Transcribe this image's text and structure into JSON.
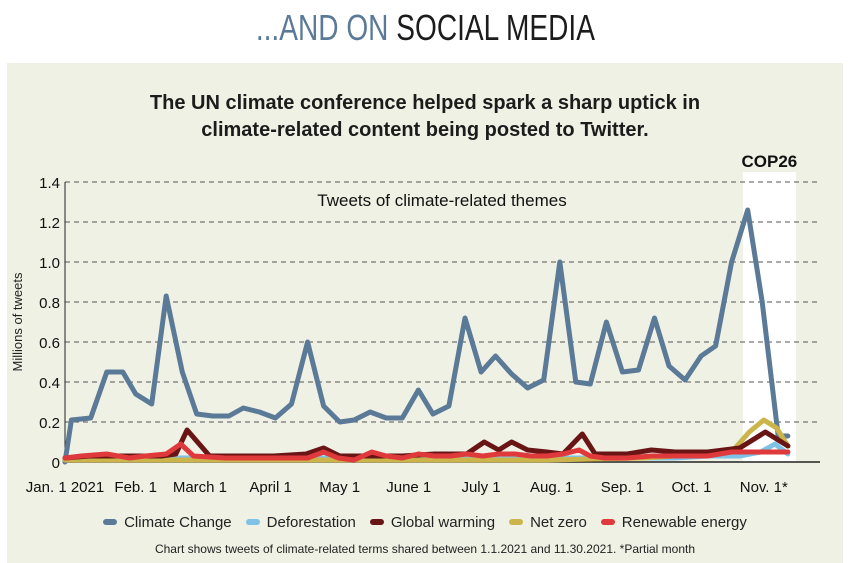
{
  "header": {
    "prefix": "...AND ON",
    "main": "SOCIAL MEDIA",
    "prefix_color": "#5b7a98"
  },
  "title": {
    "line1": "The UN climate conference helped spark a sharp uptick in",
    "line2": "climate-related content being posted to Twitter."
  },
  "footnote": "Chart shows tweets of climate-related terms shared between 1.1.2021 and 11.30.2021. *Partial month",
  "chart_data": {
    "type": "line",
    "subtitle": "Tweets of climate-related themes",
    "annotation": "COP26",
    "ylabel": "Millions of tweets",
    "ylim": [
      0,
      1.4
    ],
    "yticks": [
      "0",
      "0.2",
      "0.4",
      "0.6",
      "0.8",
      "1.0",
      "1.2",
      "1.4"
    ],
    "xlim": [
      0,
      47
    ],
    "xticks": [
      {
        "label": "Jan. 1 2021",
        "x": 0
      },
      {
        "label": "Feb. 1",
        "x": 4.4
      },
      {
        "label": "March 1",
        "x": 8.4
      },
      {
        "label": "April 1",
        "x": 12.8
      },
      {
        "label": "May 1",
        "x": 17.1
      },
      {
        "label": "June 1",
        "x": 21.4
      },
      {
        "label": "July 1",
        "x": 25.9
      },
      {
        "label": "Aug. 1",
        "x": 30.3
      },
      {
        "label": "Sep. 1",
        "x": 34.7
      },
      {
        "label": "Oct. 1",
        "x": 39.0
      },
      {
        "label": "Nov. 1*",
        "x": 43.5
      }
    ],
    "cop26_range": [
      42.2,
      45.5
    ],
    "series": [
      {
        "name": "Climate Change",
        "color": "#5b7a98",
        "x": [
          0,
          0.4,
          1.6,
          2.6,
          3.6,
          4.4,
          5.4,
          6.3,
          7.3,
          8.2,
          9.2,
          10.2,
          11.1,
          12.1,
          13.1,
          14.1,
          15.1,
          16.1,
          17.1,
          18.0,
          19.0,
          20.0,
          21.0,
          22.0,
          22.9,
          23.9,
          24.9,
          25.9,
          26.8,
          27.8,
          28.8,
          29.8,
          30.8,
          31.8,
          32.7,
          33.7,
          34.7,
          35.7,
          36.7,
          37.6,
          38.6,
          39.6,
          40.5,
          41.5,
          42.5,
          43.4,
          44.4,
          45.0
        ],
        "values": [
          0.0,
          0.21,
          0.22,
          0.45,
          0.45,
          0.34,
          0.29,
          0.83,
          0.45,
          0.24,
          0.23,
          0.23,
          0.27,
          0.25,
          0.22,
          0.29,
          0.6,
          0.28,
          0.2,
          0.21,
          0.25,
          0.22,
          0.22,
          0.36,
          0.24,
          0.28,
          0.72,
          0.45,
          0.53,
          0.44,
          0.37,
          0.41,
          1.0,
          0.4,
          0.39,
          0.7,
          0.45,
          0.46,
          0.72,
          0.48,
          0.41,
          0.53,
          0.58,
          1.0,
          1.26,
          0.8,
          0.13,
          0.13
        ]
      },
      {
        "name": "Deforestation",
        "color": "#7fc2e6",
        "x": [
          0,
          2,
          4,
          6,
          8,
          10,
          12,
          14,
          16,
          18,
          20,
          22,
          24,
          26,
          28,
          30,
          32,
          34,
          36,
          38,
          40,
          42,
          43.3,
          44.2,
          45.0
        ],
        "values": [
          0.02,
          0.02,
          0.02,
          0.02,
          0.02,
          0.02,
          0.02,
          0.02,
          0.02,
          0.02,
          0.02,
          0.02,
          0.02,
          0.02,
          0.02,
          0.02,
          0.02,
          0.02,
          0.02,
          0.02,
          0.03,
          0.03,
          0.05,
          0.09,
          0.04
        ]
      },
      {
        "name": "Global warming",
        "color": "#6a1515",
        "x": [
          0,
          1.5,
          3,
          4.5,
          6,
          6.9,
          7.6,
          9,
          11,
          13,
          15,
          16.1,
          17.1,
          19,
          21,
          23,
          25,
          26.1,
          27,
          27.8,
          28.8,
          30,
          31,
          32.2,
          33,
          35,
          36.5,
          38,
          40,
          42,
          43.6,
          45.0
        ],
        "values": [
          0.02,
          0.03,
          0.03,
          0.03,
          0.03,
          0.04,
          0.16,
          0.03,
          0.03,
          0.03,
          0.04,
          0.07,
          0.03,
          0.03,
          0.03,
          0.04,
          0.04,
          0.1,
          0.06,
          0.1,
          0.06,
          0.05,
          0.04,
          0.14,
          0.04,
          0.04,
          0.06,
          0.05,
          0.05,
          0.07,
          0.15,
          0.08
        ]
      },
      {
        "name": "Net zero",
        "color": "#cbb54a",
        "x": [
          0,
          6,
          12,
          18,
          24,
          30,
          36,
          38,
          40,
          41.5,
          42.6,
          43.5,
          44.3,
          45.0
        ],
        "values": [
          0.01,
          0.01,
          0.01,
          0.01,
          0.01,
          0.01,
          0.02,
          0.03,
          0.04,
          0.05,
          0.15,
          0.21,
          0.17,
          0.08
        ]
      },
      {
        "name": "Renewable energy",
        "color": "#e0393c",
        "x": [
          0,
          1,
          2.6,
          4,
          5,
          6.3,
          7.2,
          8,
          10,
          12,
          14,
          15.1,
          16.1,
          17,
          18,
          19.1,
          20,
          21,
          22,
          23,
          24,
          25,
          26,
          27,
          28,
          29,
          30,
          31,
          32,
          32.7,
          33.6,
          35,
          36.5,
          38,
          40,
          41.5,
          43,
          45.0
        ],
        "values": [
          0.02,
          0.03,
          0.04,
          0.02,
          0.03,
          0.04,
          0.09,
          0.03,
          0.02,
          0.02,
          0.02,
          0.02,
          0.05,
          0.02,
          0.01,
          0.05,
          0.03,
          0.02,
          0.04,
          0.03,
          0.03,
          0.04,
          0.03,
          0.04,
          0.04,
          0.03,
          0.03,
          0.04,
          0.06,
          0.03,
          0.02,
          0.02,
          0.03,
          0.03,
          0.03,
          0.05,
          0.05,
          0.05
        ]
      }
    ]
  }
}
